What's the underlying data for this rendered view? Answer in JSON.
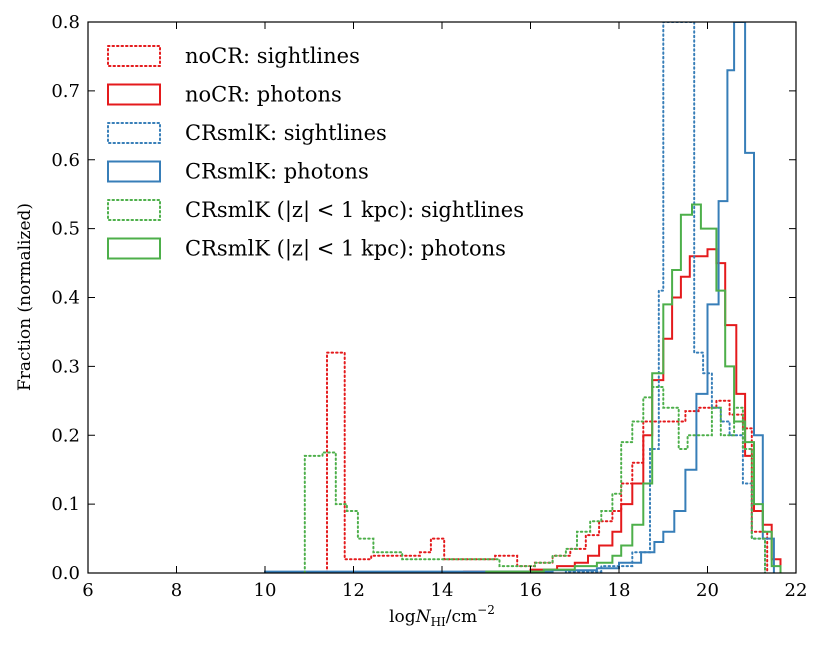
{
  "chart_data": {
    "type": "histogram-step",
    "title": "",
    "xlabel": "log N_HI / cm^-2",
    "xlabel_parts": {
      "prefix": "log",
      "var": "N",
      "sub": "HI",
      "unit": "/cm",
      "sup": "−2"
    },
    "ylabel": "Fraction (normalized)",
    "xlim": [
      6,
      22
    ],
    "ylim": [
      0.0,
      0.8
    ],
    "xticks": [
      6,
      8,
      10,
      12,
      14,
      16,
      18,
      20,
      22
    ],
    "yticks": [
      0.0,
      0.1,
      0.2,
      0.3,
      0.4,
      0.5,
      0.6,
      0.7,
      0.8
    ],
    "xtick_labels": [
      "6",
      "8",
      "10",
      "12",
      "14",
      "16",
      "18",
      "20",
      "22"
    ],
    "ytick_labels": [
      "0.0",
      "0.1",
      "0.2",
      "0.3",
      "0.4",
      "0.5",
      "0.6",
      "0.7",
      "0.8"
    ],
    "grid": false,
    "legend_position": "top-left",
    "series": [
      {
        "name": "noCR: sightlines",
        "color": "#e41a1c",
        "style": "dotted",
        "bins": [
          [
            11.4,
            0.32
          ],
          [
            11.8,
            0.02
          ],
          [
            12.4,
            0.025
          ],
          [
            13.5,
            0.03
          ],
          [
            13.75,
            0.05
          ],
          [
            14.05,
            0.02
          ],
          [
            15.2,
            0.025
          ],
          [
            15.7,
            0.01
          ],
          [
            16.1,
            0.015
          ],
          [
            16.5,
            0.025
          ],
          [
            16.9,
            0.035
          ],
          [
            17.25,
            0.055
          ],
          [
            17.55,
            0.075
          ],
          [
            17.85,
            0.09
          ],
          [
            18.05,
            0.13
          ],
          [
            18.3,
            0.16
          ],
          [
            18.55,
            0.22
          ],
          [
            18.75,
            0.22
          ],
          [
            19.5,
            0.235
          ],
          [
            19.8,
            0.24
          ],
          [
            20.2,
            0.25
          ],
          [
            20.5,
            0.23
          ],
          [
            20.8,
            0.21
          ],
          [
            21.0,
            0.06
          ],
          [
            21.35,
            0.0
          ]
        ]
      },
      {
        "name": "noCR: photons",
        "color": "#e41a1c",
        "style": "solid",
        "bins": [
          [
            14.5,
            0.002
          ],
          [
            16.0,
            0.005
          ],
          [
            16.6,
            0.01
          ],
          [
            17.0,
            0.015
          ],
          [
            17.3,
            0.025
          ],
          [
            17.55,
            0.04
          ],
          [
            17.85,
            0.06
          ],
          [
            18.05,
            0.1
          ],
          [
            18.3,
            0.13
          ],
          [
            18.55,
            0.2
          ],
          [
            18.75,
            0.28
          ],
          [
            19.0,
            0.34
          ],
          [
            19.2,
            0.4
          ],
          [
            19.4,
            0.43
          ],
          [
            19.6,
            0.46
          ],
          [
            20.0,
            0.47
          ],
          [
            20.2,
            0.45
          ],
          [
            20.4,
            0.36
          ],
          [
            20.65,
            0.26
          ],
          [
            20.85,
            0.17
          ],
          [
            21.05,
            0.09
          ],
          [
            21.25,
            0.07
          ],
          [
            21.45,
            0.02
          ],
          [
            21.65,
            0.0
          ]
        ]
      },
      {
        "name": "CRsmlK: sightlines",
        "color": "#377eb8",
        "style": "dotted",
        "bins": [
          [
            16.8,
            0.002
          ],
          [
            17.6,
            0.01
          ],
          [
            18.3,
            0.03
          ],
          [
            18.7,
            0.18
          ],
          [
            18.9,
            0.41
          ],
          [
            19.0,
            0.8
          ],
          [
            19.45,
            0.8
          ],
          [
            19.7,
            0.32
          ],
          [
            19.9,
            0.29
          ],
          [
            20.1,
            0.24
          ],
          [
            20.3,
            0.22
          ],
          [
            20.5,
            0.2
          ],
          [
            20.8,
            0.13
          ],
          [
            21.0,
            0.05
          ],
          [
            21.3,
            0.0
          ]
        ]
      },
      {
        "name": "CRsmlK: photons",
        "color": "#377eb8",
        "style": "solid",
        "bins": [
          [
            10.0,
            0.002
          ],
          [
            16.5,
            0.004
          ],
          [
            17.5,
            0.007
          ],
          [
            18.0,
            0.015
          ],
          [
            18.5,
            0.03
          ],
          [
            18.8,
            0.045
          ],
          [
            19.0,
            0.06
          ],
          [
            19.25,
            0.09
          ],
          [
            19.5,
            0.15
          ],
          [
            19.75,
            0.26
          ],
          [
            20.0,
            0.39
          ],
          [
            20.25,
            0.54
          ],
          [
            20.45,
            0.73
          ],
          [
            20.6,
            0.8
          ],
          [
            20.85,
            0.61
          ],
          [
            21.05,
            0.2
          ],
          [
            21.25,
            0.05
          ],
          [
            21.5,
            0.0
          ]
        ]
      },
      {
        "name": "CRsmlK (|z| < 1 kpc): sightlines",
        "color": "#4daf4a",
        "style": "dotted",
        "bins": [
          [
            10.9,
            0.17
          ],
          [
            11.3,
            0.175
          ],
          [
            11.6,
            0.1
          ],
          [
            11.85,
            0.09
          ],
          [
            12.1,
            0.05
          ],
          [
            12.45,
            0.03
          ],
          [
            13.1,
            0.02
          ],
          [
            14.0,
            0.02
          ],
          [
            15.3,
            0.01
          ],
          [
            16.1,
            0.015
          ],
          [
            16.5,
            0.025
          ],
          [
            16.8,
            0.035
          ],
          [
            17.05,
            0.06
          ],
          [
            17.35,
            0.075
          ],
          [
            17.6,
            0.09
          ],
          [
            17.85,
            0.115
          ],
          [
            18.05,
            0.19
          ],
          [
            18.3,
            0.22
          ],
          [
            18.55,
            0.255
          ],
          [
            18.75,
            0.27
          ],
          [
            19.0,
            0.24
          ],
          [
            19.35,
            0.18
          ],
          [
            19.55,
            0.2
          ],
          [
            19.75,
            0.2
          ],
          [
            20.1,
            0.24
          ],
          [
            20.3,
            0.2
          ],
          [
            20.6,
            0.24
          ],
          [
            20.8,
            0.18
          ],
          [
            21.0,
            0.05
          ],
          [
            21.3,
            0.0
          ]
        ]
      },
      {
        "name": "CRsmlK (|z| < 1 kpc): photons",
        "color": "#4daf4a",
        "style": "solid",
        "bins": [
          [
            15.0,
            0.002
          ],
          [
            16.3,
            0.005
          ],
          [
            17.0,
            0.01
          ],
          [
            17.5,
            0.015
          ],
          [
            17.85,
            0.025
          ],
          [
            18.05,
            0.04
          ],
          [
            18.3,
            0.07
          ],
          [
            18.55,
            0.13
          ],
          [
            18.75,
            0.29
          ],
          [
            19.0,
            0.39
          ],
          [
            19.2,
            0.44
          ],
          [
            19.4,
            0.52
          ],
          [
            19.65,
            0.535
          ],
          [
            19.85,
            0.5
          ],
          [
            20.2,
            0.41
          ],
          [
            20.4,
            0.3
          ],
          [
            20.6,
            0.22
          ],
          [
            20.85,
            0.19
          ],
          [
            21.05,
            0.1
          ],
          [
            21.25,
            0.06
          ],
          [
            21.45,
            0.01
          ],
          [
            21.65,
            0.0
          ]
        ]
      }
    ]
  }
}
